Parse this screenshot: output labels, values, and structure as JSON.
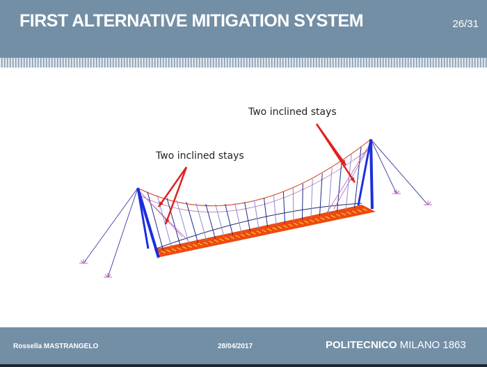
{
  "header": {
    "title": "FIRST ALTERNATIVE MITIGATION SYSTEM",
    "page": "26/31"
  },
  "figure": {
    "annotations": [
      {
        "label": "Two inclined stays"
      },
      {
        "label": "Two inclined stays"
      }
    ],
    "colors": {
      "tower": "#1a2ee0",
      "stay": "#4a4aa8",
      "cable": "#d04020",
      "deck": "#ee4a10",
      "deck_accent": "#f8d030",
      "arrow": "#e02020",
      "support": "#c060c0"
    }
  },
  "footer": {
    "author": "Rossella MASTRANGELO",
    "date": "28/04/2017",
    "logo_bold": "POLITECNICO",
    "logo_rest": " MILANO 1863"
  }
}
